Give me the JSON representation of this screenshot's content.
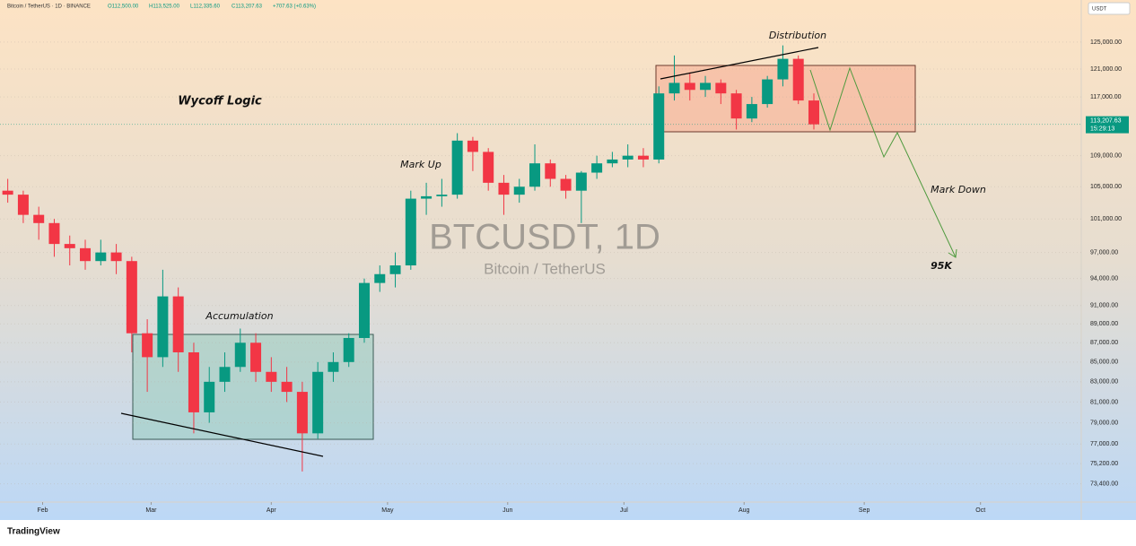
{
  "header": {
    "symbol": "Bitcoin / TetherUS · 1D · BINANCE",
    "ohlc": [
      "O112,500.00",
      "H113,525.00",
      "L112,335.60",
      "C113,207.63"
    ],
    "change": "+707.63 (+0.63%)",
    "currency": "USDT"
  },
  "watermark": {
    "title": "BTCUSDT, 1D",
    "subtitle": "Bitcoin / TetherUS"
  },
  "annotations": {
    "logic": "Wycoff Logic",
    "accumulation": "Accumulation",
    "markup": "Mark Up",
    "distribution": "Distribution",
    "markdown": "Mark Down",
    "target": "95K"
  },
  "brand": "TradingView",
  "chart_data": {
    "type": "candlestick",
    "log_scale": true,
    "up_color": "#089981",
    "down_color": "#f23645",
    "x": [
      -9,
      -5,
      -1,
      3,
      7,
      11,
      15,
      19,
      23,
      27,
      31,
      35,
      39,
      43,
      47,
      51,
      55,
      59,
      63,
      67,
      71,
      75,
      79,
      83,
      87,
      91,
      95,
      99,
      103,
      107,
      111,
      115,
      119,
      123,
      127,
      131,
      135,
      139,
      143,
      147,
      151,
      155,
      159,
      163,
      167,
      171,
      175,
      179,
      183,
      187,
      191,
      195,
      199
    ],
    "open": [
      104500,
      104000,
      101500,
      100500,
      98000,
      97500,
      96000,
      97000,
      96000,
      88000,
      85500,
      92000,
      86000,
      80000,
      83000,
      84500,
      87000,
      84000,
      83000,
      82000,
      78000,
      84000,
      85000,
      87500,
      93500,
      94500,
      95500,
      103500,
      103800,
      104000,
      111000,
      109500,
      105500,
      104000,
      105000,
      108000,
      106000,
      104500,
      106800,
      108000,
      108500,
      109000,
      108500,
      117500,
      119000,
      118000,
      119000,
      117500,
      114000,
      116000,
      119500,
      122500,
      116500
    ],
    "high": [
      106000,
      104500,
      102500,
      101000,
      99000,
      98500,
      98500,
      98000,
      96500,
      89500,
      95000,
      93000,
      87000,
      84500,
      86000,
      88500,
      88000,
      85500,
      84500,
      83000,
      85000,
      86000,
      88000,
      94000,
      95500,
      97000,
      104500,
      105500,
      106000,
      112000,
      111500,
      110000,
      106500,
      106000,
      110500,
      108500,
      106500,
      107000,
      109000,
      109500,
      110500,
      110000,
      118500,
      123000,
      120500,
      120000,
      119500,
      118000,
      117000,
      120000,
      124500,
      123000,
      117500
    ],
    "low": [
      103000,
      100500,
      98500,
      96500,
      95500,
      95000,
      95500,
      94500,
      86000,
      82000,
      84500,
      84000,
      78000,
      79000,
      82000,
      84000,
      83000,
      82000,
      81000,
      74500,
      77500,
      83000,
      84500,
      87000,
      92500,
      93000,
      95000,
      101500,
      102500,
      103500,
      107000,
      104500,
      101500,
      103000,
      104500,
      105000,
      103500,
      100500,
      106000,
      107500,
      107500,
      107500,
      108000,
      116500,
      116500,
      117000,
      116000,
      112500,
      113500,
      115500,
      118500,
      116000,
      112500
    ],
    "close": [
      104000,
      101500,
      100500,
      98000,
      97500,
      96000,
      97000,
      96000,
      88000,
      85500,
      92000,
      86000,
      80000,
      83000,
      84500,
      87000,
      84000,
      83000,
      82000,
      78000,
      84000,
      85000,
      87500,
      93500,
      94500,
      95500,
      103500,
      103800,
      104000,
      111000,
      109500,
      105500,
      104000,
      105000,
      108000,
      106000,
      104500,
      106800,
      108000,
      108500,
      109000,
      108500,
      117500,
      119000,
      118000,
      119000,
      117500,
      114000,
      116000,
      119500,
      122500,
      116500,
      113200
    ],
    "xlim": [
      -11,
      268
    ],
    "xticks": [
      {
        "value": 0,
        "label": "Feb"
      },
      {
        "value": 28,
        "label": "Mar"
      },
      {
        "value": 59,
        "label": "Apr"
      },
      {
        "value": 89,
        "label": "May"
      },
      {
        "value": 120,
        "label": "Jun"
      },
      {
        "value": 150,
        "label": "Jul"
      },
      {
        "value": 181,
        "label": "Aug"
      },
      {
        "value": 212,
        "label": "Sep"
      },
      {
        "value": 242,
        "label": "Oct"
      }
    ],
    "ylim": [
      71800,
      131500
    ],
    "yticks": [
      {
        "value": 125000,
        "label": "125,000.00"
      },
      {
        "value": 121000,
        "label": "121,000.00"
      },
      {
        "value": 117000,
        "label": "117,000.00"
      },
      {
        "value": 109000,
        "label": "109,000.00"
      },
      {
        "value": 105000,
        "label": "105,000.00"
      },
      {
        "value": 101000,
        "label": "101,000.00"
      },
      {
        "value": 97000,
        "label": "97,000.00"
      },
      {
        "value": 94000,
        "label": "94,000.00"
      },
      {
        "value": 91000,
        "label": "91,000.00"
      },
      {
        "value": 89000,
        "label": "89,000.00"
      },
      {
        "value": 87000,
        "label": "87,000.00"
      },
      {
        "value": 85000,
        "label": "85,000.00"
      },
      {
        "value": 83000,
        "label": "83,000.00"
      },
      {
        "value": 81000,
        "label": "81,000.00"
      },
      {
        "value": 79000,
        "label": "79,000.00"
      },
      {
        "value": 77000,
        "label": "77,000.00"
      },
      {
        "value": 75200,
        "label": "75,200.00"
      },
      {
        "value": 73400,
        "label": "73,400.00"
      }
    ],
    "last_price": {
      "value": 113207.63,
      "label": "113,207.63"
    },
    "countdown": "15:29:13"
  }
}
